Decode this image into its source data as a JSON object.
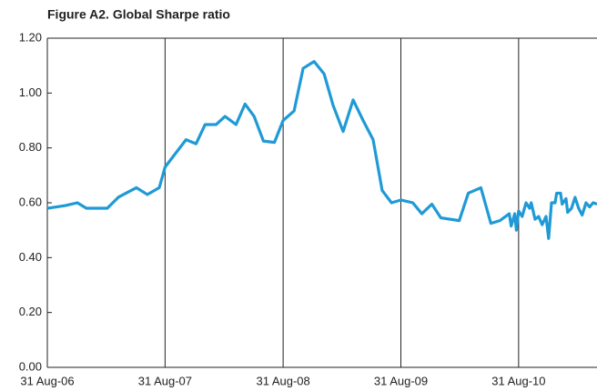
{
  "chart_data": {
    "type": "line",
    "title": "Figure A2. Global Sharpe ratio",
    "x": [
      "2006-08-31",
      "2006-09-28",
      "2006-10-26",
      "2006-12-02",
      "2006-12-30",
      "2007-03-05",
      "2007-04-08",
      "2007-06-03",
      "2007-07-07",
      "2007-08-13",
      "2007-08-31",
      "2007-11-04",
      "2007-12-05",
      "2008-01-02",
      "2008-02-05",
      "2008-03-04",
      "2008-04-07",
      "2008-05-05",
      "2008-06-02",
      "2008-07-01",
      "2008-08-04",
      "2008-08-31",
      "2008-10-04",
      "2008-11-01",
      "2008-12-05",
      "2009-01-05",
      "2009-02-02",
      "2009-03-05",
      "2009-04-05",
      "2009-05-06",
      "2009-06-06",
      "2009-07-04",
      "2009-08-02",
      "2009-08-31",
      "2009-10-07",
      "2009-11-04",
      "2009-12-05",
      "2010-01-02",
      "2010-02-28",
      "2010-03-28",
      "2010-05-06",
      "2010-06-06",
      "2010-07-04",
      "2010-08-02",
      "2010-08-08",
      "2010-08-19",
      "2010-08-24",
      "2010-08-31",
      "2010-09-11",
      "2010-09-23",
      "2010-10-04",
      "2010-10-09",
      "2010-10-21",
      "2010-11-01",
      "2010-11-12",
      "2010-11-24",
      "2010-12-02",
      "2010-12-11",
      "2010-12-22",
      "2010-12-27",
      "2011-01-08",
      "2011-01-13",
      "2011-01-25",
      "2011-01-30",
      "2011-02-11",
      "2011-02-22",
      "2011-03-05",
      "2011-03-16",
      "2011-03-28",
      "2011-04-08",
      "2011-04-19",
      "2011-05-01"
    ],
    "values": [
      0.58,
      0.585,
      0.59,
      0.6,
      0.58,
      0.58,
      0.62,
      0.655,
      0.63,
      0.655,
      0.73,
      0.83,
      0.815,
      0.885,
      0.885,
      0.915,
      0.885,
      0.96,
      0.915,
      0.825,
      0.82,
      0.9,
      0.935,
      1.09,
      1.115,
      1.07,
      0.955,
      0.86,
      0.975,
      0.9,
      0.83,
      0.645,
      0.6,
      0.61,
      0.6,
      0.56,
      0.595,
      0.545,
      0.535,
      0.635,
      0.655,
      0.525,
      0.535,
      0.56,
      0.515,
      0.56,
      0.5,
      0.57,
      0.55,
      0.6,
      0.58,
      0.6,
      0.54,
      0.55,
      0.52,
      0.55,
      0.47,
      0.6,
      0.6,
      0.635,
      0.635,
      0.595,
      0.615,
      0.565,
      0.58,
      0.62,
      0.58,
      0.555,
      0.6,
      0.585,
      0.6,
      0.595
    ],
    "color": "#1f9ad6",
    "xlim": [
      "2006-08-31",
      "2011-05-01"
    ],
    "xticks": [
      {
        "value": "2006-08-31",
        "label": "31 Aug-06"
      },
      {
        "value": "2007-08-31",
        "label": "31 Aug-07"
      },
      {
        "value": "2008-08-31",
        "label": "31 Aug-08"
      },
      {
        "value": "2009-08-31",
        "label": "31 Aug-09"
      },
      {
        "value": "2010-08-31",
        "label": "31 Aug-10"
      }
    ],
    "ylim": [
      0,
      1.2
    ],
    "yticks": [
      {
        "value": 0,
        "label": "0.00"
      },
      {
        "value": 0.2,
        "label": "0.20"
      },
      {
        "value": 0.4,
        "label": "0.40"
      },
      {
        "value": 0.6,
        "label": "0.60"
      },
      {
        "value": 0.8,
        "label": "0.80"
      },
      {
        "value": 1.0,
        "label": "1.00"
      },
      {
        "value": 1.2,
        "label": "1.20"
      }
    ],
    "grid": "x"
  }
}
